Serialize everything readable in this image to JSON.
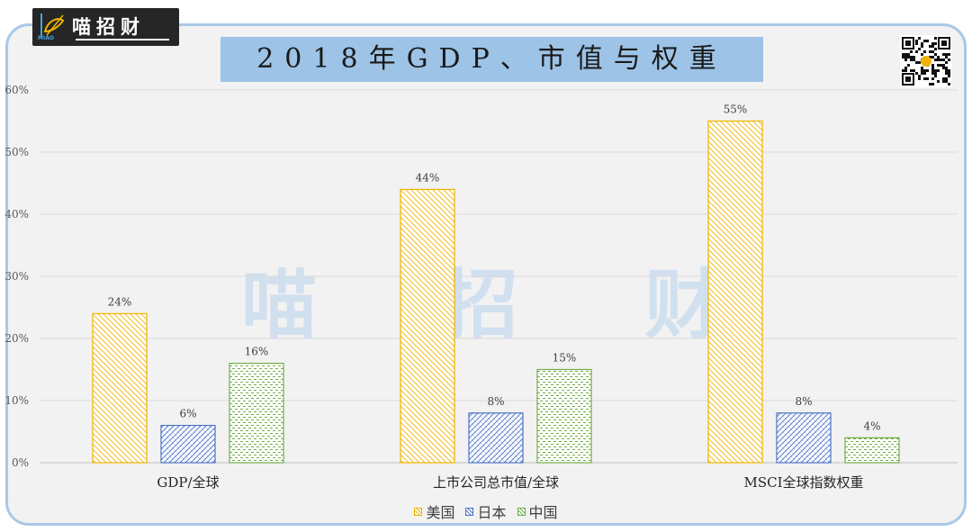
{
  "logo": {
    "text": "喵招财",
    "sub": "MIAO"
  },
  "title": "2018年GDP、市值与权重",
  "watermark": [
    "喵",
    "招",
    "财"
  ],
  "colors": {
    "us": "#f0b400",
    "jp": "#4a72c4",
    "cn": "#70ad47",
    "grid": "#d9d9d9",
    "frame": "#a9c8e6",
    "title_bg": "#9dc3e6"
  },
  "chart_data": {
    "type": "bar",
    "title": "2018年GDP、市值与权重",
    "categories": [
      "GDP/全球",
      "上市公司总市值/全球",
      "MSCI全球指数权重"
    ],
    "ylim": [
      0,
      60
    ],
    "yticks": [
      0,
      10,
      20,
      30,
      40,
      50,
      60
    ],
    "ytick_labels": [
      "0%",
      "10%",
      "20%",
      "30%",
      "40%",
      "50%",
      "60%"
    ],
    "grid": true,
    "legend_position": "bottom",
    "series": [
      {
        "name": "美国",
        "values": [
          24,
          44,
          55
        ],
        "labels": [
          "24%",
          "44%",
          "55%"
        ],
        "color": "#f0b400",
        "pattern": "diag-down"
      },
      {
        "name": "日本",
        "values": [
          6,
          8,
          8
        ],
        "labels": [
          "6%",
          "8%",
          "8%"
        ],
        "color": "#4a72c4",
        "pattern": "diag-cross"
      },
      {
        "name": "中国",
        "values": [
          16,
          15,
          4
        ],
        "labels": [
          "16%",
          "15%",
          "4%"
        ],
        "color": "#70ad47",
        "pattern": "dash-h"
      }
    ]
  }
}
